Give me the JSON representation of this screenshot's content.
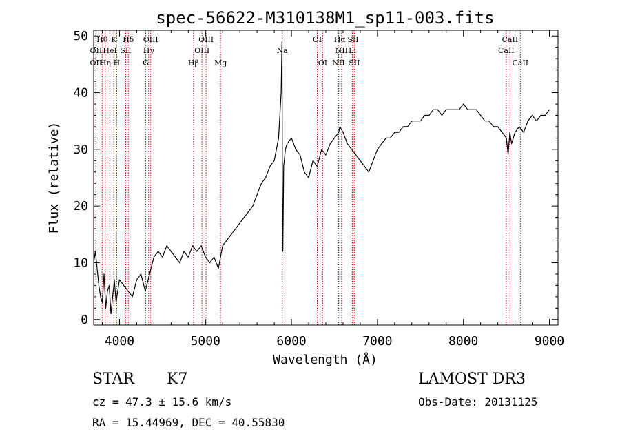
{
  "colors": {
    "spectrum": "#000000",
    "line_marker": "#c00000",
    "axes": "#000000",
    "background": "#ffffff"
  },
  "chart_data": {
    "type": "line",
    "title": "spec-56622-M310138M1_sp11-003.fits",
    "xlabel": "Wavelength (Å)",
    "ylabel": "Flux (relative)",
    "xlim": [
      3700,
      9100
    ],
    "ylim": [
      -1,
      51
    ],
    "x_ticks": [
      4000,
      5000,
      6000,
      7000,
      8000,
      9000
    ],
    "y_ticks": [
      0,
      10,
      20,
      30,
      40,
      50
    ],
    "grid": false,
    "series": [
      {
        "x": [
          3700,
          3720,
          3740,
          3760,
          3780,
          3800,
          3820,
          3840,
          3860,
          3880,
          3900,
          3920,
          3940,
          3960,
          3980,
          4000,
          4050,
          4100,
          4150,
          4200,
          4250,
          4300,
          4350,
          4400,
          4450,
          4500,
          4550,
          4600,
          4650,
          4700,
          4750,
          4800,
          4850,
          4900,
          4950,
          5000,
          5050,
          5100,
          5150,
          5200,
          5250,
          5300,
          5350,
          5400,
          5450,
          5500,
          5550,
          5600,
          5650,
          5700,
          5750,
          5800,
          5850,
          5880,
          5890,
          5895,
          5900,
          5910,
          5930,
          5950,
          6000,
          6050,
          6100,
          6150,
          6200,
          6250,
          6300,
          6350,
          6400,
          6450,
          6500,
          6550,
          6563,
          6600,
          6650,
          6700,
          6750,
          6800,
          6850,
          6900,
          6950,
          7000,
          7050,
          7100,
          7150,
          7200,
          7250,
          7300,
          7350,
          7400,
          7450,
          7500,
          7550,
          7600,
          7650,
          7700,
          7750,
          7800,
          7850,
          7900,
          7950,
          8000,
          8050,
          8100,
          8150,
          8200,
          8250,
          8300,
          8350,
          8400,
          8450,
          8500,
          8520,
          8540,
          8560,
          8600,
          8650,
          8700,
          8750,
          8800,
          8850,
          8900,
          8950,
          9000
        ],
        "y": [
          10,
          12,
          9,
          6,
          4,
          3,
          8,
          2,
          5,
          6,
          1,
          4,
          7,
          3,
          5,
          7,
          6,
          5,
          4,
          7,
          8,
          5,
          8,
          11,
          12,
          11,
          13,
          12,
          11,
          10,
          12,
          11,
          13,
          12,
          13,
          11,
          10,
          11,
          9,
          13,
          14,
          15,
          16,
          17,
          18,
          19,
          20,
          22,
          24,
          25,
          27,
          28,
          32,
          40,
          49,
          20,
          12,
          27,
          30,
          31,
          32,
          30,
          29,
          26,
          25,
          28,
          27,
          30,
          29,
          31,
          32,
          33,
          34,
          33,
          31,
          30,
          29,
          28,
          27,
          26,
          28,
          30,
          31,
          32,
          32,
          33,
          33,
          34,
          34,
          35,
          35,
          35,
          36,
          36,
          37,
          37,
          36,
          37,
          37,
          37,
          37,
          38,
          37,
          37,
          37,
          36,
          35,
          35,
          34,
          34,
          33,
          32,
          29,
          33,
          31,
          33,
          34,
          33,
          35,
          36,
          35,
          36,
          36,
          37
        ]
      }
    ],
    "line_markers": [
      {
        "label": "Hθ",
        "x": 3798,
        "row": 1
      },
      {
        "label": "K",
        "x": 3934,
        "row": 1
      },
      {
        "label": "Hδ",
        "x": 4102,
        "row": 1
      },
      {
        "label": "OIII",
        "x": 4363,
        "row": 1
      },
      {
        "label": "OIII",
        "x": 5007,
        "row": 1
      },
      {
        "label": "OI",
        "x": 6300,
        "row": 1
      },
      {
        "label": "Hα",
        "x": 6563,
        "row": 1
      },
      {
        "label": "SII",
        "x": 6716,
        "row": 1
      },
      {
        "label": "CaII",
        "x": 8542,
        "row": 1
      },
      {
        "label": "OII",
        "x": 3727,
        "row": 2
      },
      {
        "label": "HeI",
        "x": 3889,
        "row": 2
      },
      {
        "label": "SII",
        "x": 4072,
        "row": 2
      },
      {
        "label": "Hγ",
        "x": 4340,
        "row": 2
      },
      {
        "label": "OIII",
        "x": 4959,
        "row": 2
      },
      {
        "label": "Na",
        "x": 5893,
        "row": 2
      },
      {
        "label": "NII",
        "x": 6583,
        "row": 2
      },
      {
        "label": "Li",
        "x": 6708,
        "row": 2
      },
      {
        "label": "CaII",
        "x": 8498,
        "row": 2
      },
      {
        "label": "OII",
        "x": 3727,
        "row": 3
      },
      {
        "label": "Hη",
        "x": 3835,
        "row": 3
      },
      {
        "label": "H",
        "x": 3968,
        "row": 3
      },
      {
        "label": "G",
        "x": 4305,
        "row": 3
      },
      {
        "label": "Hβ",
        "x": 4861,
        "row": 3
      },
      {
        "label": "Mg",
        "x": 5175,
        "row": 3
      },
      {
        "label": "OI",
        "x": 6363,
        "row": 3
      },
      {
        "label": "NII",
        "x": 6548,
        "row": 3
      },
      {
        "label": "SII",
        "x": 6731,
        "row": 3
      },
      {
        "label": "CaII",
        "x": 8662,
        "row": 3
      }
    ]
  },
  "info": {
    "object_type": "STAR",
    "subclass": "K7",
    "survey": "LAMOST DR3",
    "cz_text": "cz = 47.3 ± 15.6 km/s",
    "obs_date_text": "Obs-Date: 20131125",
    "radec_text": "RA =  15.44969, DEC =  40.55830"
  }
}
